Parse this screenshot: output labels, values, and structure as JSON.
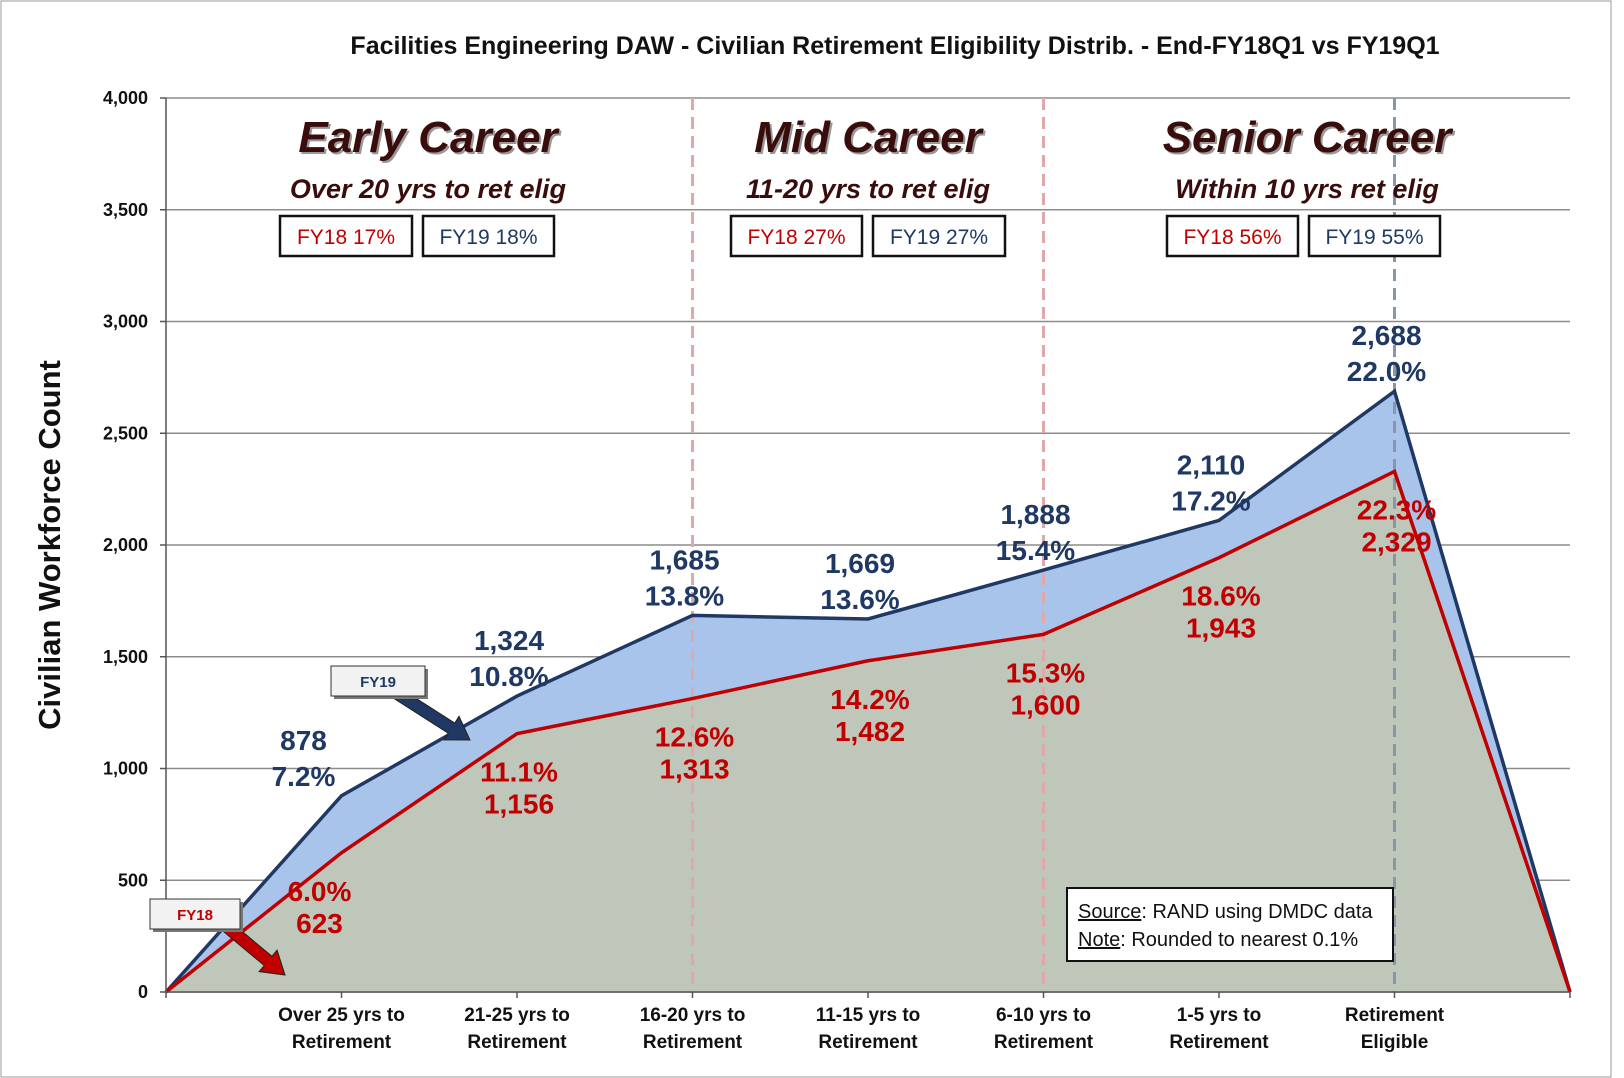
{
  "chart_data": {
    "type": "area",
    "title": "Facilities Engineering DAW - Civilian Retirement Eligibility Distrib. - End-FY18Q1 vs FY19Q1",
    "y_label": "Civilian Workforce Count",
    "categories": [
      null,
      "Over 25 yrs to Retirement",
      "21-25 yrs to Retirement",
      "16-20 yrs to Retirement",
      "11-15 yrs to Retirement",
      "6-10 yrs to Retirement",
      "1-5 yrs to Retirement",
      "Retirement Eligible",
      null
    ],
    "series": [
      {
        "name": "FY19",
        "color": "#1f3864",
        "fill": "#a9c4ea",
        "values": [
          0,
          878,
          1324,
          1685,
          1669,
          1888,
          2110,
          2688,
          0
        ],
        "value_labels": [
          null,
          "878",
          "1,324",
          "1,685",
          "1,669",
          "1,888",
          "2,110",
          "2,688",
          null
        ],
        "share_labels": [
          null,
          "7.2%",
          "10.8%",
          "13.8%",
          "13.6%",
          "15.4%",
          "17.2%",
          "22.0%",
          null
        ]
      },
      {
        "name": "FY18",
        "color": "#c00000",
        "fill": "#bfc7bb",
        "values": [
          0,
          623,
          1156,
          1313,
          1482,
          1600,
          1943,
          2329,
          0
        ],
        "value_labels": [
          null,
          "623",
          "1,156",
          "1,313",
          "1,482",
          "1,600",
          "1,943",
          "2,329",
          null
        ],
        "share_labels": [
          null,
          "6.0%",
          "11.1%",
          "12.6%",
          "14.2%",
          "15.3%",
          "18.6%",
          "22.3%",
          null
        ]
      }
    ],
    "ylim": [
      0,
      4000
    ],
    "yticks": [
      0,
      500,
      {
        "value": 1000,
        "label": "1,000"
      },
      {
        "value": 1500,
        "label": "1,500"
      },
      {
        "value": 2000,
        "label": "2,000"
      },
      {
        "value": 2500,
        "label": "2,500"
      },
      {
        "value": 3000,
        "label": "3,000"
      },
      {
        "value": 3500,
        "label": "3,500"
      },
      {
        "value": 4000,
        "label": "4,000"
      }
    ],
    "grid": true,
    "sections": [
      {
        "title": "Early Career",
        "subtitle": "Over 20 yrs to ret elig",
        "boxes": [
          "FY18 17%",
          "FY19 18%"
        ]
      },
      {
        "title": "Mid Career",
        "subtitle": "11-20 yrs to ret elig",
        "boxes": [
          "FY18 27%",
          "FY19 27%"
        ]
      },
      {
        "title": "Senior Career",
        "subtitle": "Within 10 yrs ret elig",
        "boxes": [
          "FY18 56%",
          "FY19 55%"
        ]
      }
    ],
    "notes": [
      {
        "label": "Source",
        "text": ":  RAND using DMDC data"
      },
      {
        "label": "Note",
        "text": ":  Rounded to nearest 0.1%"
      }
    ]
  }
}
